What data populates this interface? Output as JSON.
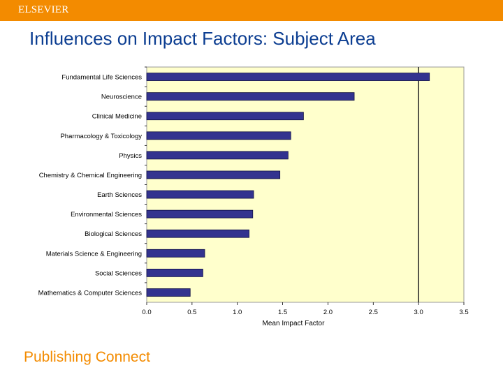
{
  "header": {
    "brand": "ELSEVIER"
  },
  "slide": {
    "title": "Influences on Impact Factors: Subject Area"
  },
  "footer": {
    "text": "Publishing Connect"
  },
  "colors": {
    "accent": "#f38b00",
    "title": "#0b3d91",
    "plot_bg": "#ffffcc",
    "bar": "#33338f",
    "gridline": "#222222"
  },
  "chart_data": {
    "type": "bar",
    "orientation": "horizontal",
    "categories": [
      "Fundamental Life Sciences",
      "Neuroscience",
      "Clinical Medicine",
      "Pharmacology & Toxicology",
      "Physics",
      "Chemistry & Chemical Engineering",
      "Earth Sciences",
      "Environmental Sciences",
      "Biological Sciences",
      "Materials Science & Engineering",
      "Social Sciences",
      "Mathematics & Computer Sciences"
    ],
    "values": [
      3.12,
      2.29,
      1.73,
      1.59,
      1.56,
      1.47,
      1.18,
      1.17,
      1.13,
      0.64,
      0.62,
      0.48
    ],
    "xlabel": "Mean Impact Factor",
    "xlim": [
      0,
      3.5
    ],
    "xticks": [
      "0.0",
      "0.5",
      "1.0",
      "1.5",
      "2.0",
      "2.5",
      "3.0",
      "3.5"
    ],
    "gridlines": [
      3.0
    ],
    "legend": "none"
  }
}
